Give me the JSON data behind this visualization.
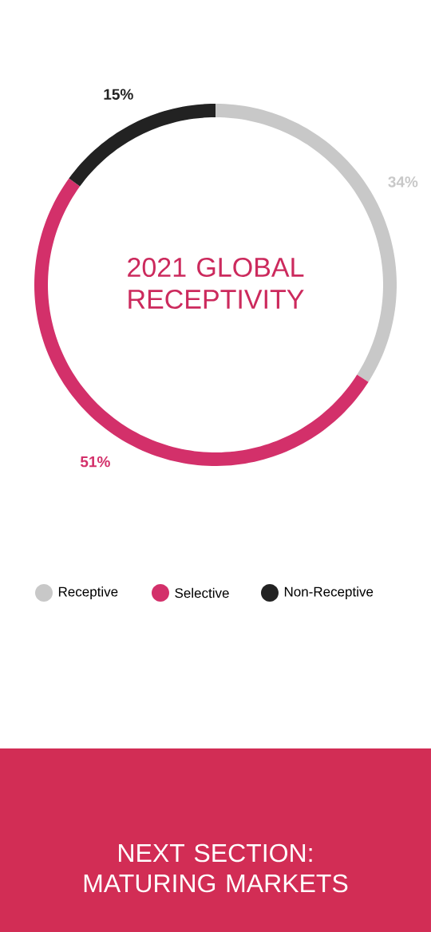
{
  "chart_data": {
    "type": "donut",
    "title": "2021 GLOBAL RECEPTIVITY",
    "categories": [
      "Receptive",
      "Selective",
      "Non-Receptive"
    ],
    "values": [
      34,
      51,
      15
    ],
    "colors": [
      "#c8c8c8",
      "#d3306a",
      "#222222"
    ],
    "value_labels": [
      "34%",
      "51%",
      "15%"
    ],
    "legend": "bottom",
    "annotations": [
      "NEXT SECTION: MATURING MARKETS"
    ]
  }
}
